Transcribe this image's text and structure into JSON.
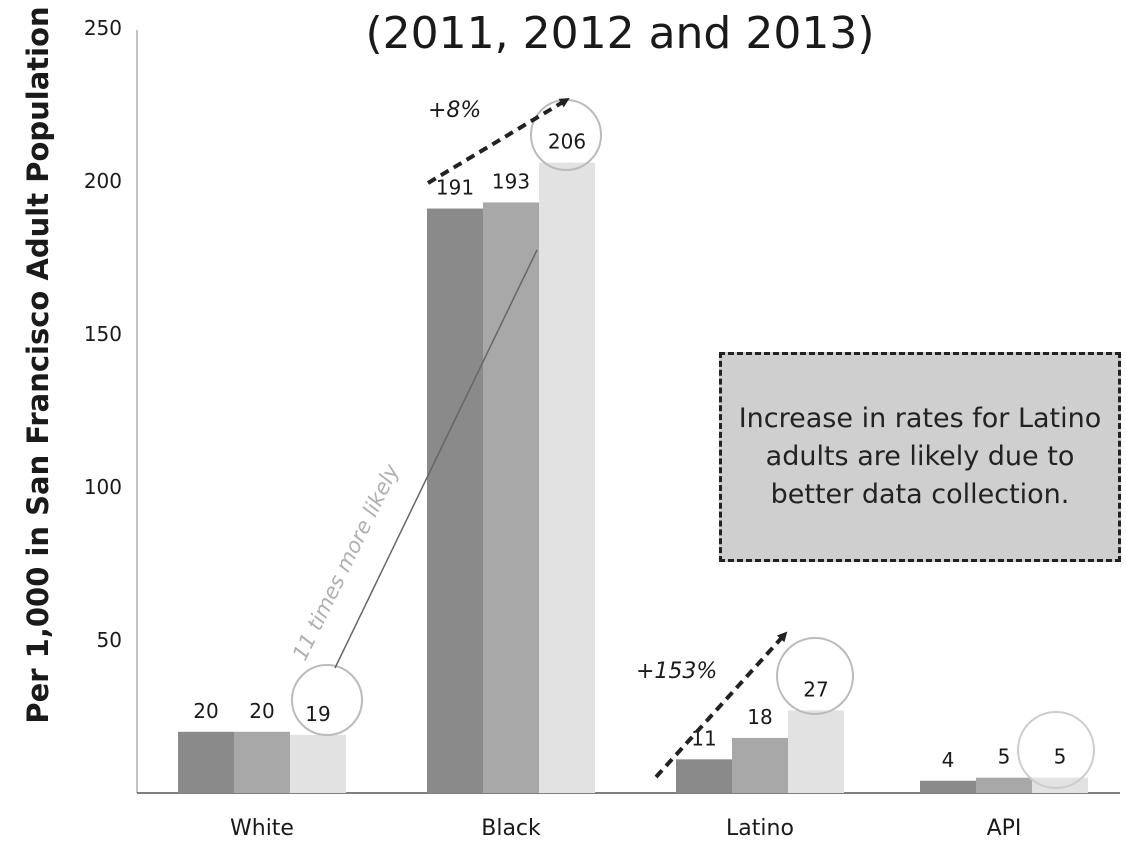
{
  "chart_data": {
    "type": "bar",
    "title": "(2011, 2012 and 2013)",
    "ylabel": "Per 1,000 in San Francisco Adult Population",
    "xlabel": "",
    "ylim": [
      0,
      250
    ],
    "yticks": [
      "250",
      "200",
      "150",
      "100",
      "50"
    ],
    "categories": [
      "White",
      "Black",
      "Latino",
      "API"
    ],
    "series": [
      {
        "values": [
          20,
          191,
          11,
          4
        ],
        "color": "#8a8a8a"
      },
      {
        "values": [
          20,
          193,
          18,
          5
        ],
        "color": "#a8a8a8"
      },
      {
        "values": [
          19,
          206,
          27,
          5
        ],
        "color": "#e2e2e2"
      }
    ],
    "data_labels": [
      [
        "20",
        "20",
        "19"
      ],
      [
        "191",
        "193",
        "206"
      ],
      [
        "11",
        "18",
        "27"
      ],
      [
        "4",
        "5",
        "5"
      ]
    ],
    "annotations": {
      "black_change": "+8%",
      "latino_change": "+153%",
      "ratio_note": "11 times more likely",
      "box_text": "Increase in rates for Latino adults are likely due to better data collection."
    }
  }
}
